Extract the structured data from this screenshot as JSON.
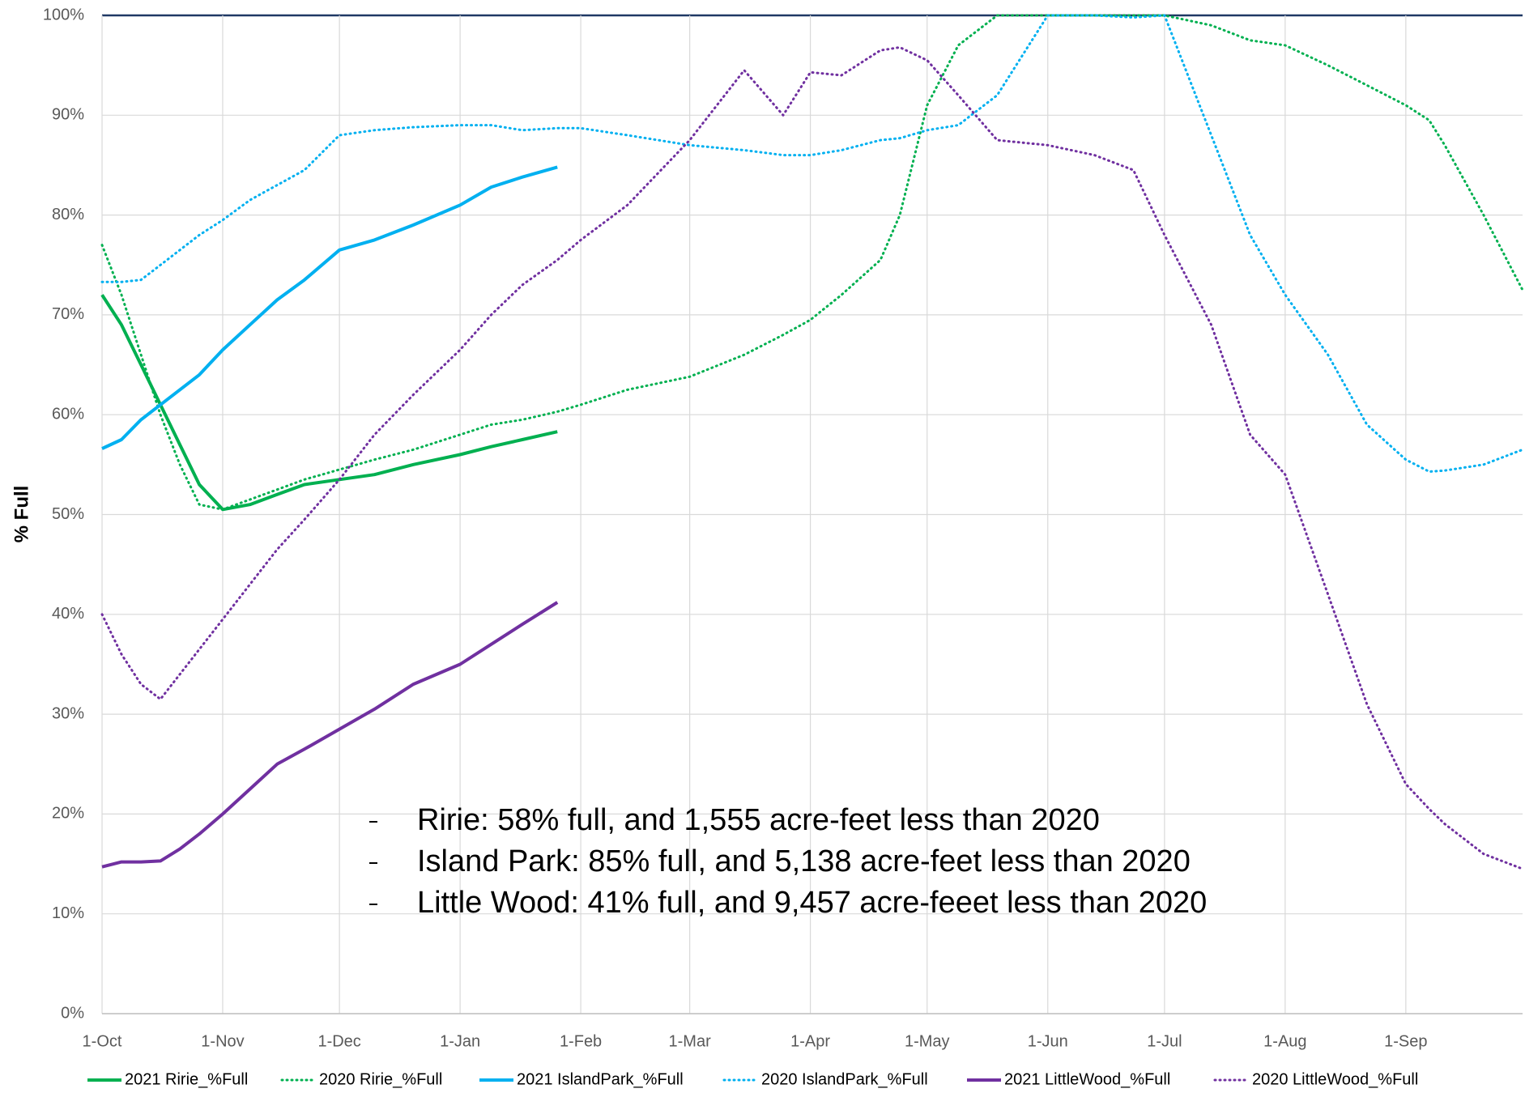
{
  "chart_data": {
    "type": "line",
    "ylabel": "% Full",
    "xlim": [
      0,
      365
    ],
    "xticks": [
      {
        "value": 0,
        "label": "1-Oct"
      },
      {
        "value": 31,
        "label": "1-Nov"
      },
      {
        "value": 61,
        "label": "1-Dec"
      },
      {
        "value": 92,
        "label": "1-Jan"
      },
      {
        "value": 123,
        "label": "1-Feb"
      },
      {
        "value": 151,
        "label": "1-Mar"
      },
      {
        "value": 182,
        "label": "1-Apr"
      },
      {
        "value": 212,
        "label": "1-May"
      },
      {
        "value": 243,
        "label": "1-Jun"
      },
      {
        "value": 273,
        "label": "1-Jul"
      },
      {
        "value": 304,
        "label": "1-Aug"
      },
      {
        "value": 335,
        "label": "1-Sep"
      }
    ],
    "ylim": [
      0,
      100
    ],
    "yticks": [
      {
        "value": 0,
        "label": "0%"
      },
      {
        "value": 10,
        "label": "10%"
      },
      {
        "value": 20,
        "label": "20%"
      },
      {
        "value": 30,
        "label": "30%"
      },
      {
        "value": 40,
        "label": "40%"
      },
      {
        "value": 50,
        "label": "50%"
      },
      {
        "value": 60,
        "label": "60%"
      },
      {
        "value": 70,
        "label": "70%"
      },
      {
        "value": 80,
        "label": "80%"
      },
      {
        "value": 90,
        "label": "90%"
      },
      {
        "value": 100,
        "label": "100%"
      }
    ],
    "grid": true,
    "legend": "bottom",
    "x": [
      0,
      5,
      10,
      15,
      20,
      25,
      31,
      38,
      45,
      52,
      61,
      70,
      80,
      92,
      100,
      108,
      117,
      123,
      135,
      151,
      165,
      175,
      182,
      190,
      200,
      205,
      212,
      220,
      230,
      243,
      255,
      265,
      273,
      285,
      295,
      304,
      315,
      325,
      335,
      341,
      345,
      355,
      365
    ],
    "series": [
      {
        "name": "2021 Ririe_%Full",
        "color": "#00b050",
        "style": "solid",
        "values": [
          72,
          69,
          65,
          61,
          57,
          53,
          50.5,
          51,
          52,
          53,
          53.5,
          54,
          55,
          56,
          56.8,
          57.5,
          58.3,
          null,
          null,
          null,
          null,
          null,
          null,
          null,
          null,
          null,
          null,
          null,
          null,
          null,
          null,
          null,
          null,
          null,
          null,
          null,
          null,
          null,
          null,
          null,
          null,
          null,
          null
        ]
      },
      {
        "name": "2020 Ririe_%Full",
        "color": "#00b050",
        "style": "dotted",
        "values": [
          77,
          72,
          66,
          60,
          55,
          51,
          50.5,
          51.5,
          52.5,
          53.5,
          54.5,
          55.5,
          56.5,
          58,
          59,
          59.5,
          60.3,
          61,
          62.5,
          63.8,
          66,
          68,
          69.5,
          72,
          75.5,
          80,
          91,
          97,
          100,
          100,
          100,
          100,
          100,
          99,
          97.5,
          97,
          95,
          93,
          91,
          89.5,
          87,
          80,
          72.5
        ]
      },
      {
        "name": "2021 IslandPark_%Full",
        "color": "#00b0f0",
        "style": "solid",
        "values": [
          56.6,
          57.5,
          59.5,
          61,
          62.5,
          64,
          66.5,
          69,
          71.5,
          73.5,
          76.5,
          77.5,
          79,
          81,
          82.8,
          83.8,
          84.8,
          null,
          null,
          null,
          null,
          null,
          null,
          null,
          null,
          null,
          null,
          null,
          null,
          null,
          null,
          null,
          null,
          null,
          null,
          null,
          null,
          null,
          null,
          null,
          null,
          null,
          null
        ]
      },
      {
        "name": "2020 IslandPark_%Full",
        "color": "#00b0f0",
        "style": "dotted",
        "values": [
          73.3,
          73.3,
          73.5,
          75,
          76.5,
          78,
          79.5,
          81.5,
          83,
          84.5,
          88,
          88.5,
          88.8,
          89,
          89,
          88.5,
          88.7,
          88.7,
          88,
          87,
          86.5,
          86,
          86,
          86.5,
          87.5,
          87.7,
          88.5,
          89,
          92,
          100,
          100,
          99.8,
          100,
          88,
          78,
          72,
          66,
          59,
          55.5,
          54.3,
          54.4,
          55,
          56.5
        ]
      },
      {
        "name": "2021 LittleWood_%Full",
        "color": "#7030a0",
        "style": "solid",
        "values": [
          14.7,
          15.2,
          15.2,
          15.3,
          16.5,
          18,
          20,
          22.5,
          25,
          26.5,
          28.5,
          30.5,
          33,
          35,
          37,
          39,
          41.2,
          null,
          null,
          null,
          null,
          null,
          null,
          null,
          null,
          null,
          null,
          null,
          null,
          null,
          null,
          null,
          null,
          null,
          null,
          null,
          null,
          null,
          null,
          null,
          null,
          null,
          null
        ]
      },
      {
        "name": "2020 LittleWood_%Full",
        "color": "#7030a0",
        "style": "dotted",
        "values": [
          40,
          36,
          33,
          31.5,
          34,
          36.5,
          39.5,
          43,
          46.5,
          49.5,
          53.5,
          58,
          62,
          66.5,
          70,
          73,
          75.5,
          77.5,
          81,
          87.5,
          94.5,
          90,
          94.3,
          94,
          96.5,
          96.8,
          95.5,
          92,
          87.5,
          87,
          86,
          84.5,
          78,
          69,
          58,
          54,
          42,
          31,
          23,
          20.5,
          19,
          16,
          14.5
        ]
      }
    ],
    "annotations": [
      "Ririe: 58% full, and 1,555 acre-feet less than 2020",
      "Island Park: 85% full, and 5,138 acre-feet less than 2020",
      "Little Wood: 41% full, and 9,457 acre-feeet less than 2020"
    ]
  }
}
